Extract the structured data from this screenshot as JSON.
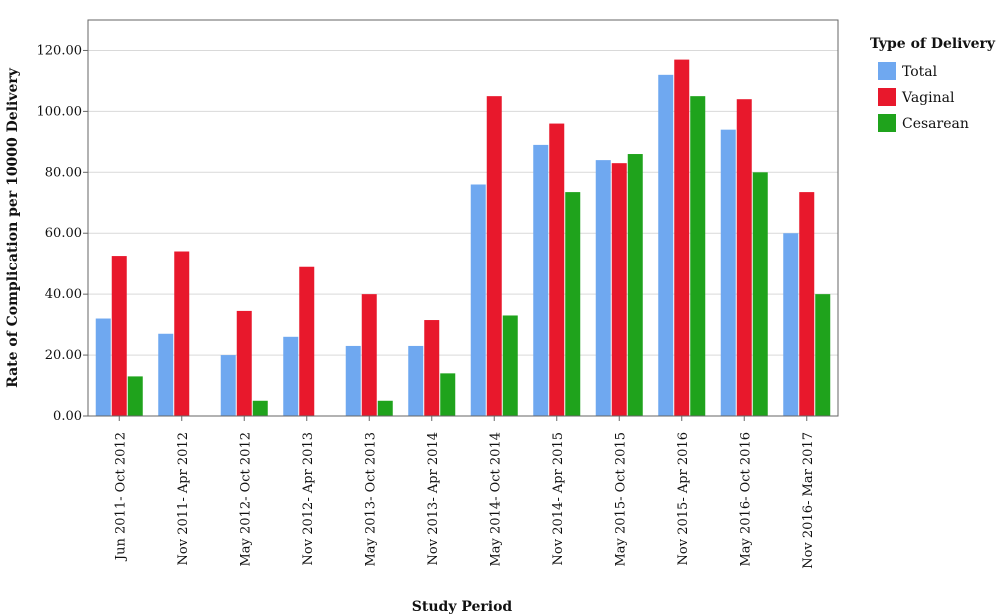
{
  "chart_data": {
    "type": "bar",
    "xlabel": "Study Period",
    "ylabel": "Rate of Complication per 10000 Delivery",
    "ylim": [
      0,
      130
    ],
    "yticks": [
      "0.00",
      "20.00",
      "40.00",
      "60.00",
      "80.00",
      "100.00",
      "120.00"
    ],
    "grid": true,
    "legend_title": "Type of Delivery",
    "legend_position": "right",
    "categories": [
      "Jun 2011- Oct 2012",
      "Nov 2011- Apr 2012",
      "May 2012- Oct 2012",
      "Nov 2012- Apr 2013",
      "May 2013- Oct 2013",
      "Nov 2013- Apr 2014",
      "May 2014- Oct 2014",
      "Nov 2014- Apr 2015",
      "May 2015- Oct 2015",
      "Nov 2015- Apr 2016",
      "May 2016- Oct 2016",
      "Nov 2016- Mar 2017"
    ],
    "series": [
      {
        "name": "Total",
        "color": "#6fa8f0",
        "values": [
          32,
          27,
          20,
          26,
          23,
          23,
          76,
          89,
          84,
          112,
          94,
          60
        ]
      },
      {
        "name": "Vaginal",
        "color": "#e8182c",
        "values": [
          52.5,
          54,
          34.5,
          49,
          40,
          31.5,
          105,
          96,
          83,
          117,
          104,
          73.5
        ]
      },
      {
        "name": "Cesarean",
        "color": "#1fa31c",
        "values": [
          13,
          0,
          5,
          0,
          5,
          14,
          33,
          73.5,
          86,
          105,
          80,
          40
        ]
      }
    ]
  }
}
